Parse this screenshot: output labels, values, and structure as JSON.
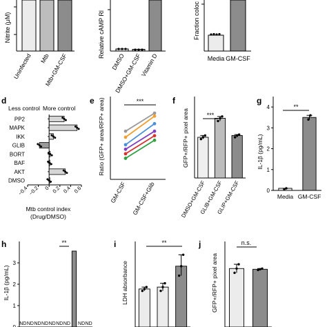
{
  "chart_data": [
    {
      "id": "top-left",
      "type": "bar",
      "ylabel": "Nitrite (μM)",
      "categories": [
        "Uninfected",
        "Mtb",
        "Mtb+GM-CSF"
      ],
      "values": [
        null,
        null,
        null
      ],
      "fills": [
        "#e8e8e8",
        "#bcbcbc",
        "#8a8a8a"
      ]
    },
    {
      "id": "top-middle",
      "type": "bar",
      "ylabel": "Relative cAMP Rl",
      "categories": [
        "DMSO",
        "DMSO+GM-CSF",
        "Vitamin D"
      ],
      "values": [
        1.0,
        0.8,
        null
      ]
    },
    {
      "id": "top-right",
      "type": "bar",
      "ylabel": "Fraction coloc",
      "categories": [
        "Media",
        "GM-CSF"
      ],
      "values": [
        0.12,
        null
      ]
    },
    {
      "panel": "d",
      "type": "bar",
      "orientation": "horizontal",
      "annotations": [
        "Less control",
        "More control"
      ],
      "xlabel": "Mtb control index\n(Drug/DMSO)",
      "xlim": [
        -0.4,
        0.6
      ],
      "xticks": [
        "−0.4",
        "−0.2",
        "0",
        "0.2",
        "0.4",
        "0.6"
      ],
      "categories": [
        "PP2",
        "MAPK",
        "IKK",
        "GLIB",
        "BORT",
        "BAF",
        "AKT",
        "DMSO"
      ],
      "values": [
        0.28,
        0.52,
        0.08,
        -0.18,
        0.02,
        0.01,
        0.3,
        0.0
      ]
    },
    {
      "panel": "e",
      "type": "line",
      "ylabel": "Ratio (GFP+ area/RFP+ area)",
      "categories": [
        "GM-CSF",
        "GM-CSF+Glib"
      ],
      "significance": "***",
      "series": [
        {
          "values": [
            0.62,
            0.74
          ],
          "color": "#9a9a9a"
        },
        {
          "values": [
            0.58,
            0.72
          ],
          "color": "#f0a030"
        },
        {
          "values": [
            0.53,
            0.67
          ],
          "color": "#4a8fd8"
        },
        {
          "values": [
            0.5,
            0.62
          ],
          "color": "#8040c0"
        },
        {
          "values": [
            0.47,
            0.59
          ],
          "color": "#d83030"
        },
        {
          "values": [
            0.44,
            0.56
          ],
          "color": "#30a040"
        }
      ]
    },
    {
      "panel": "f",
      "type": "bar",
      "ylabel": "GFP+/RFP+ pixel area",
      "categories": [
        "DMSO+GM-CSF",
        "GLIB+GM-CSF",
        "GLIP+GM-CSF"
      ],
      "values": [
        0.45,
        0.66,
        0.47
      ],
      "points": [
        [
          0.43,
          0.45,
          0.47
        ],
        [
          0.63,
          0.66,
          0.68
        ],
        [
          0.45,
          0.47,
          0.48
        ]
      ],
      "ylim": [
        0,
        0.9
      ],
      "significance": "***"
    },
    {
      "panel": "g",
      "type": "bar",
      "ylabel": "IL-1β (pg/mL)",
      "categories": [
        "Media",
        "GM-CSF"
      ],
      "values": [
        0.1,
        3.5
      ],
      "points": [
        [
          0.05,
          0.1
        ],
        [
          3.4,
          3.6
        ]
      ],
      "ylim": [
        0,
        4.5
      ],
      "yticks": [
        "0",
        "1",
        "2",
        "3",
        "4"
      ],
      "significance": "**"
    },
    {
      "panel": "h",
      "type": "bar",
      "ylabel": "IL-1β (pg/mL)",
      "ylim": [
        0,
        4
      ],
      "yticks": [
        "0",
        "1",
        "2",
        "3"
      ],
      "values": [
        null,
        null,
        null,
        null,
        null,
        null,
        null,
        3.55,
        null,
        null
      ],
      "nd_label": "ND",
      "significance": "**"
    },
    {
      "panel": "i",
      "type": "bar",
      "ylabel": "LDH absorbance",
      "ylim": [
        0,
        0.45
      ],
      "values": [
        0.2,
        0.21,
        0.32
      ],
      "points": [
        [
          0.19,
          0.2,
          0.21
        ],
        [
          0.19,
          0.21,
          0.23
        ],
        [
          0.27,
          0.32,
          0.38
        ]
      ],
      "significance": "**"
    },
    {
      "panel": "j",
      "type": "bar",
      "ylabel": "GFP+/RFP+ pixel area",
      "ylim": [
        0,
        0.6
      ],
      "values": [
        0.41,
        0.405
      ],
      "points": [
        [
          0.38,
          0.41,
          0.44
        ],
        [
          0.4,
          0.405,
          0.41
        ]
      ],
      "significance": "n.s."
    }
  ],
  "panel_letters": {
    "d": "d",
    "e": "e",
    "f": "f",
    "g": "g",
    "h": "h",
    "i": "i",
    "j": "j"
  }
}
